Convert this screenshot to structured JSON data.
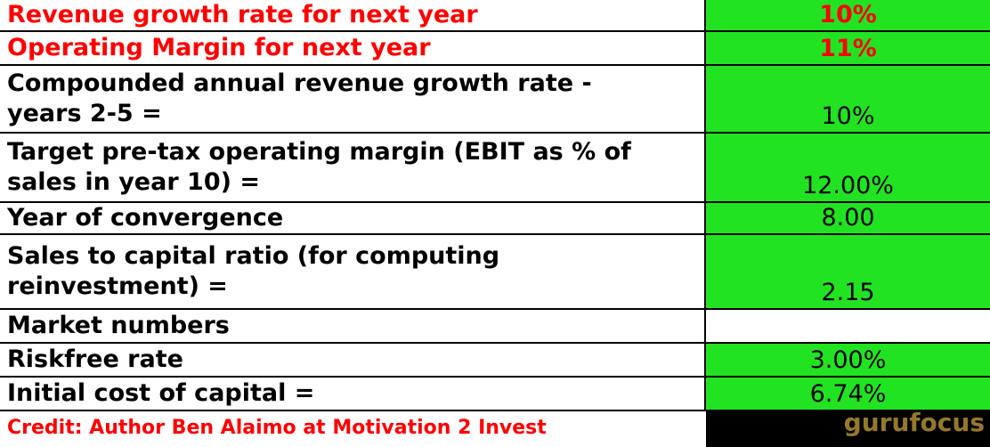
{
  "table": {
    "rows": [
      {
        "lines": [
          "Revenue growth rate for next year"
        ],
        "value": "10%"
      },
      {
        "lines": [
          "Operating Margin for next year"
        ],
        "value": "11%"
      },
      {
        "lines": [
          "Compounded annual revenue growth rate -",
          "years 2-5 ="
        ],
        "value": "10%"
      },
      {
        "lines": [
          "Target pre-tax operating margin (EBIT as % of",
          "sales in year 10) ="
        ],
        "value": "12.00%"
      },
      {
        "lines": [
          "Year of convergence"
        ],
        "value": "8.00"
      },
      {
        "lines": [
          "Sales to capital ratio  (for computing",
          "reinvestment) ="
        ],
        "value": "2.15"
      },
      {
        "lines": [
          "Market numbers"
        ],
        "value": null
      },
      {
        "lines": [
          "Riskfree rate"
        ],
        "value": "3.00%"
      },
      {
        "lines": [
          "Initial cost of capital ="
        ],
        "value": "6.74%"
      }
    ]
  },
  "credit": "Credit: Author Ben Alaimo at Motivation 2 Invest",
  "watermark": "gurufocus"
}
